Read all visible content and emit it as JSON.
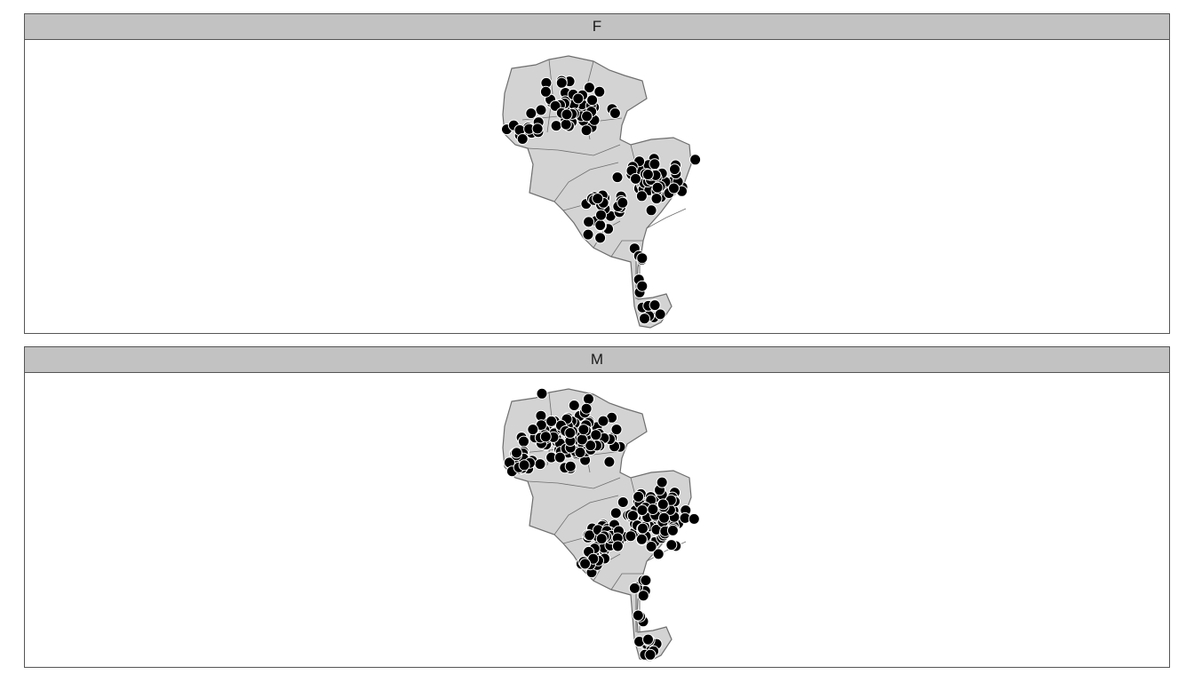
{
  "facets": [
    {
      "label": "F"
    },
    {
      "label": "M"
    }
  ],
  "colors": {
    "strip_fill": "#c2c2c2",
    "region_fill": "#d3d3d3",
    "region_stroke": "#6e6e6e",
    "point_fill": "#000000",
    "point_stroke": "#ffffff"
  },
  "icons": [
    "map-region-shape",
    "point-marker"
  ]
}
